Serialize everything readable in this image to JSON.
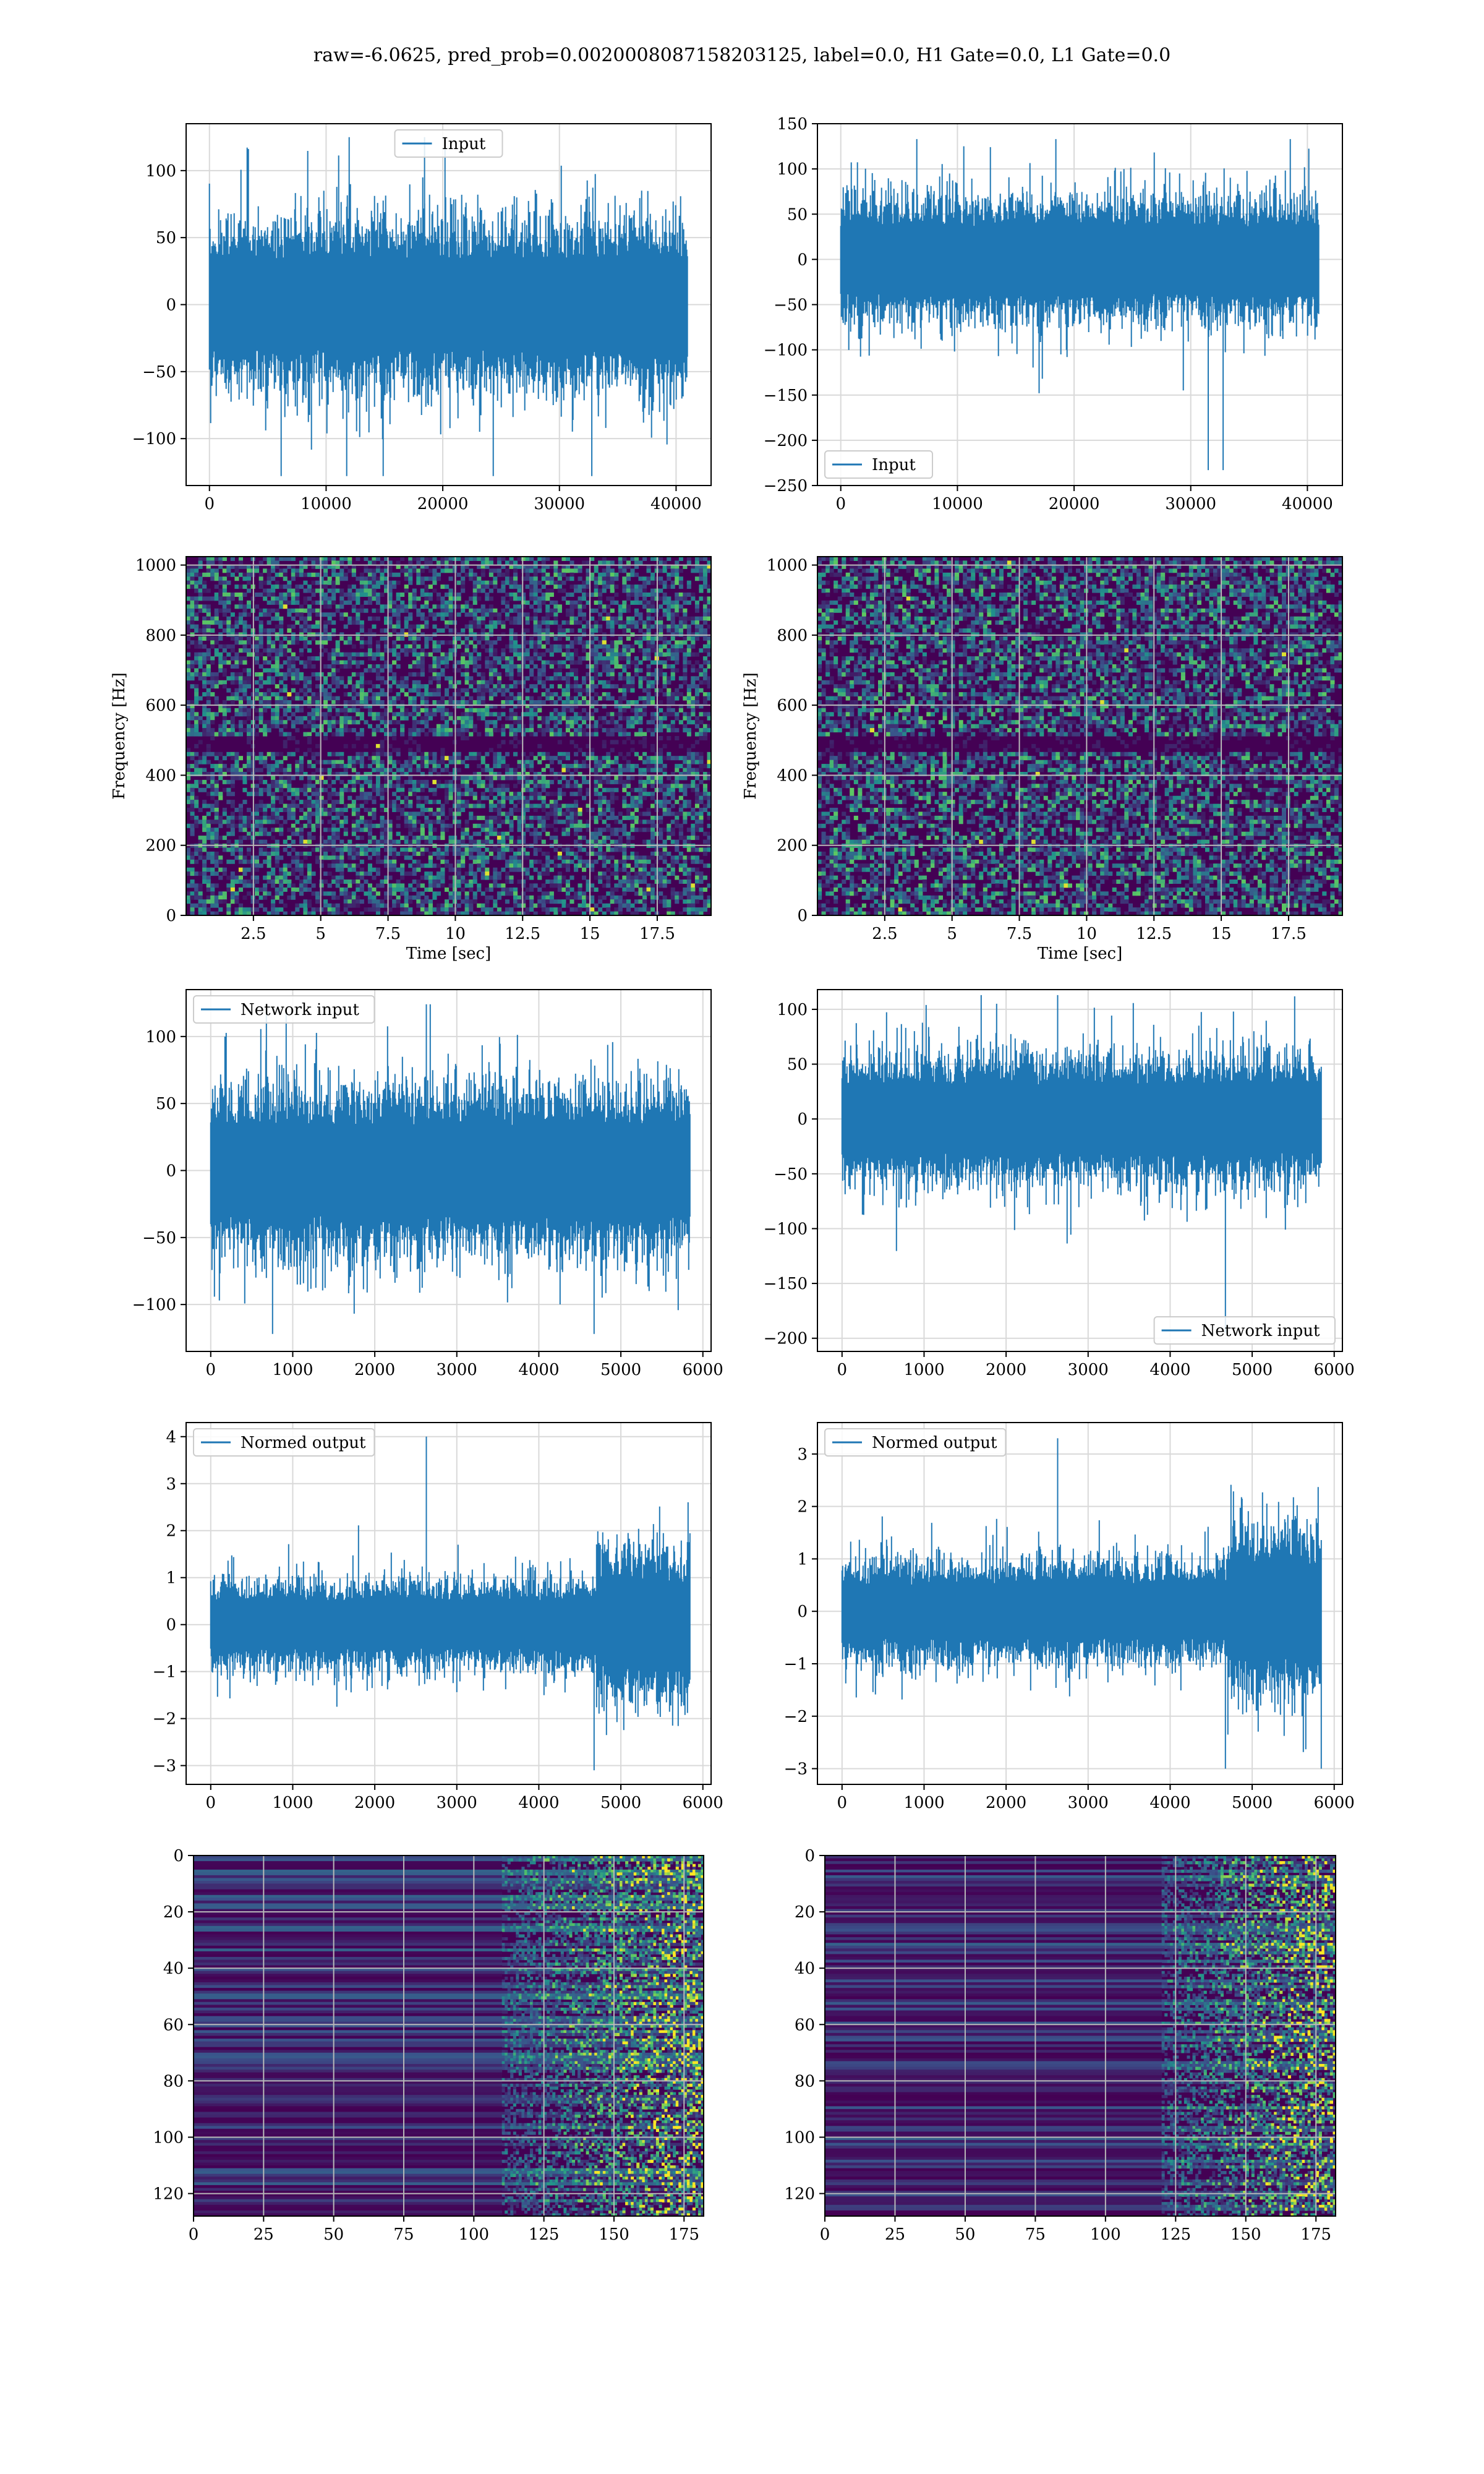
{
  "suptitle": "raw=-6.0625, pred_prob=0.0020008087158203125, label=0.0, H1 Gate=0.0, L1 Gate=0.0",
  "colors": {
    "line": "#1f77b4",
    "grid": "#d9d9d9",
    "viridis_dark": "#440154",
    "viridis_mid": "#21918c",
    "viridis_hi": "#fde725"
  },
  "chart_data": [
    {
      "id": "h1-input",
      "type": "line",
      "title": "",
      "xlabel": "",
      "ylabel": "",
      "xlim": [
        -2000,
        43000
      ],
      "ylim": [
        -135,
        135
      ],
      "xticks": [
        0,
        10000,
        20000,
        30000,
        40000
      ],
      "yticks": [
        -100,
        -50,
        0,
        50,
        100
      ],
      "grid": true,
      "legend": "top-center",
      "series": [
        {
          "name": "Input",
          "n_samples": 40960,
          "x_range": [
            0,
            40960
          ],
          "envelope_max": 125,
          "envelope_min": -128,
          "typical_band": [
            -60,
            60
          ]
        }
      ]
    },
    {
      "id": "l1-input",
      "type": "line",
      "title": "",
      "xlabel": "",
      "ylabel": "",
      "xlim": [
        -2000,
        43000
      ],
      "ylim": [
        -250,
        150
      ],
      "xticks": [
        0,
        10000,
        20000,
        30000,
        40000
      ],
      "yticks": [
        -250,
        -200,
        -150,
        -100,
        -50,
        0,
        50,
        100,
        150
      ],
      "grid": true,
      "legend": "bottom-left",
      "series": [
        {
          "name": "Input",
          "n_samples": 40960,
          "x_range": [
            0,
            40960
          ],
          "envelope_max": 133,
          "envelope_min": -233,
          "typical_band": [
            -65,
            65
          ]
        }
      ],
      "annotations": [
        {
          "x": 31500,
          "y": -233
        },
        {
          "x": 17000,
          "y": -148
        }
      ]
    },
    {
      "id": "h1-spectrogram",
      "type": "heatmap",
      "title": "",
      "xlabel": "Time [sec]",
      "ylabel": "Frequency [Hz]",
      "xlim": [
        0,
        19.5
      ],
      "ylim": [
        0,
        1024
      ],
      "xticks": [
        2.5,
        5.0,
        7.5,
        10.0,
        12.5,
        15.0,
        17.5
      ],
      "yticks": [
        0,
        200,
        400,
        600,
        800,
        1000
      ],
      "grid": true,
      "colormap": "viridis",
      "dark_band_hz": [
        470,
        510
      ]
    },
    {
      "id": "l1-spectrogram",
      "type": "heatmap",
      "title": "",
      "xlabel": "Time [sec]",
      "ylabel": "Frequency [Hz]",
      "xlim": [
        0,
        19.5
      ],
      "ylim": [
        0,
        1024
      ],
      "xticks": [
        2.5,
        5.0,
        7.5,
        10.0,
        12.5,
        15.0,
        17.5
      ],
      "yticks": [
        0,
        200,
        400,
        600,
        800,
        1000
      ],
      "grid": true,
      "colormap": "viridis",
      "dark_band_hz": [
        470,
        510
      ]
    },
    {
      "id": "h1-network-input",
      "type": "line",
      "title": "",
      "xlabel": "",
      "ylabel": "",
      "xlim": [
        -300,
        6100
      ],
      "ylim": [
        -135,
        135
      ],
      "xticks": [
        0,
        1000,
        2000,
        3000,
        4000,
        5000,
        6000
      ],
      "yticks": [
        -100,
        -50,
        0,
        50,
        100
      ],
      "grid": true,
      "legend": "top-left",
      "series": [
        {
          "name": "Network input",
          "n_samples": 5840,
          "x_range": [
            0,
            5840
          ],
          "envelope_max": 124,
          "envelope_min": -122,
          "typical_band": [
            -60,
            60
          ]
        }
      ]
    },
    {
      "id": "l1-network-input",
      "type": "line",
      "title": "",
      "xlabel": "",
      "ylabel": "",
      "xlim": [
        -300,
        6100
      ],
      "ylim": [
        -212,
        118
      ],
      "xticks": [
        0,
        1000,
        2000,
        3000,
        4000,
        5000,
        6000
      ],
      "yticks": [
        -200,
        -150,
        -100,
        -50,
        0,
        50,
        100
      ],
      "grid": true,
      "legend": "bottom-right",
      "series": [
        {
          "name": "Network input",
          "n_samples": 5840,
          "x_range": [
            0,
            5840
          ],
          "envelope_max": 113,
          "envelope_min": -195,
          "typical_band": [
            -55,
            55
          ]
        }
      ]
    },
    {
      "id": "h1-normed-output",
      "type": "line",
      "title": "",
      "xlabel": "",
      "ylabel": "",
      "xlim": [
        -300,
        6100
      ],
      "ylim": [
        -3.4,
        4.3
      ],
      "xticks": [
        0,
        1000,
        2000,
        3000,
        4000,
        5000,
        6000
      ],
      "yticks": [
        -3,
        -2,
        -1,
        0,
        1,
        2,
        3,
        4
      ],
      "grid": true,
      "legend": "top-left",
      "series": [
        {
          "name": "Normed output",
          "n_samples": 5840,
          "x_range": [
            0,
            5840
          ],
          "envelope_max": 4.0,
          "envelope_min": -3.1,
          "typical_band": [
            -0.9,
            0.9
          ],
          "burst_x_range": [
            4700,
            5840
          ]
        }
      ]
    },
    {
      "id": "l1-normed-output",
      "type": "line",
      "title": "",
      "xlabel": "",
      "ylabel": "",
      "xlim": [
        -300,
        6100
      ],
      "ylim": [
        -3.3,
        3.6
      ],
      "xticks": [
        0,
        1000,
        2000,
        3000,
        4000,
        5000,
        6000
      ],
      "yticks": [
        -3,
        -2,
        -1,
        0,
        1,
        2,
        3
      ],
      "grid": true,
      "legend": "top-left",
      "series": [
        {
          "name": "Normed output",
          "n_samples": 5840,
          "x_range": [
            0,
            5840
          ],
          "envelope_max": 3.3,
          "envelope_min": -3.0,
          "typical_band": [
            -0.9,
            0.9
          ],
          "burst_x_range": [
            4700,
            5840
          ]
        }
      ]
    },
    {
      "id": "h1-feature-map",
      "type": "heatmap",
      "title": "",
      "xlabel": "",
      "ylabel": "",
      "xlim": [
        0,
        182
      ],
      "ylim": [
        128,
        0
      ],
      "xticks": [
        0,
        25,
        50,
        75,
        100,
        125,
        150,
        175
      ],
      "yticks": [
        0,
        20,
        40,
        60,
        80,
        100,
        120
      ],
      "grid": true,
      "colormap": "viridis",
      "active_x_range": [
        110,
        182
      ]
    },
    {
      "id": "l1-feature-map",
      "type": "heatmap",
      "title": "",
      "xlabel": "",
      "ylabel": "",
      "xlim": [
        0,
        182
      ],
      "ylim": [
        128,
        0
      ],
      "xticks": [
        0,
        25,
        50,
        75,
        100,
        125,
        150,
        175
      ],
      "yticks": [
        0,
        20,
        40,
        60,
        80,
        100,
        120
      ],
      "grid": true,
      "colormap": "viridis",
      "active_x_range": [
        120,
        182
      ]
    }
  ]
}
